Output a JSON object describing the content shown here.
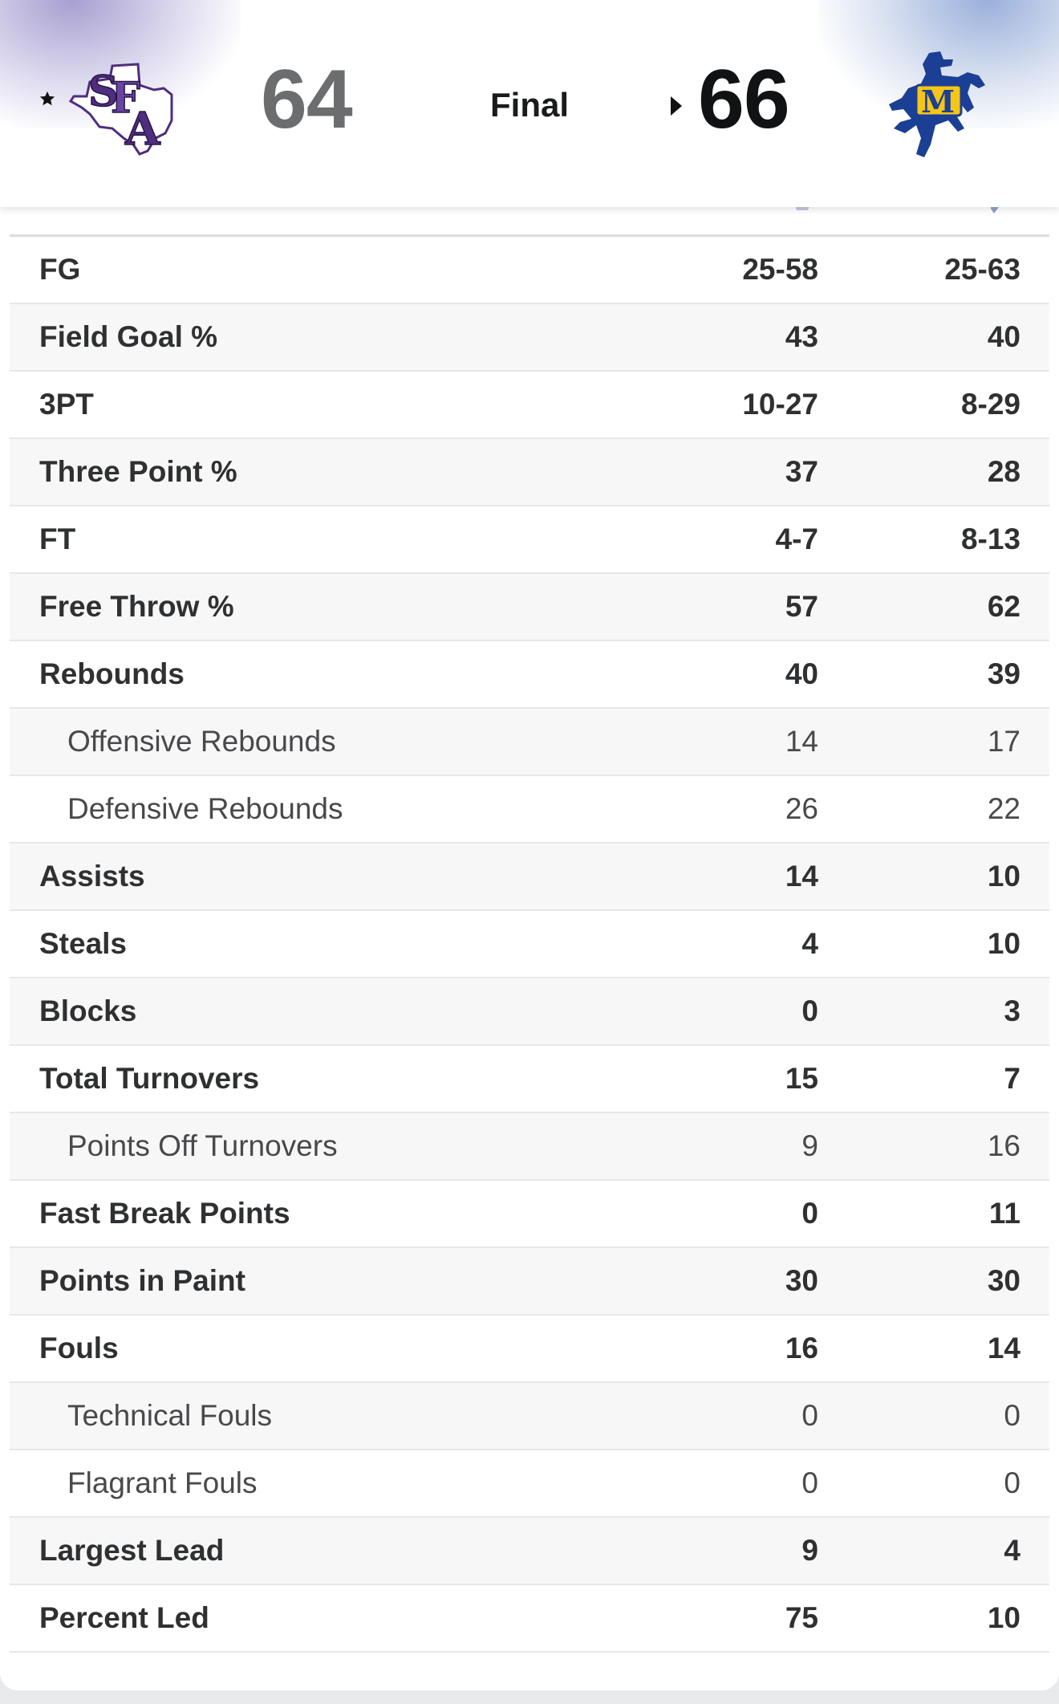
{
  "header": {
    "away": {
      "rank_icon": "star-icon",
      "logo": "sfa-logo",
      "score": "64"
    },
    "status": "Final",
    "home": {
      "logo": "mcneese-cowboy-logo",
      "score": "66",
      "winner_indicator": "caret-right-icon"
    }
  },
  "colors": {
    "away": "#4f2d7f",
    "home": "#1b3f94",
    "home_accent": "#f5c518"
  },
  "stats": [
    {
      "label": "FG",
      "away": "25-58",
      "home": "25-63",
      "sub": false
    },
    {
      "label": "Field Goal %",
      "away": "43",
      "home": "40",
      "sub": false
    },
    {
      "label": "3PT",
      "away": "10-27",
      "home": "8-29",
      "sub": false
    },
    {
      "label": "Three Point %",
      "away": "37",
      "home": "28",
      "sub": false
    },
    {
      "label": "FT",
      "away": "4-7",
      "home": "8-13",
      "sub": false
    },
    {
      "label": "Free Throw %",
      "away": "57",
      "home": "62",
      "sub": false
    },
    {
      "label": "Rebounds",
      "away": "40",
      "home": "39",
      "sub": false
    },
    {
      "label": "Offensive Rebounds",
      "away": "14",
      "home": "17",
      "sub": true
    },
    {
      "label": "Defensive Rebounds",
      "away": "26",
      "home": "22",
      "sub": true
    },
    {
      "label": "Assists",
      "away": "14",
      "home": "10",
      "sub": false
    },
    {
      "label": "Steals",
      "away": "4",
      "home": "10",
      "sub": false
    },
    {
      "label": "Blocks",
      "away": "0",
      "home": "3",
      "sub": false
    },
    {
      "label": "Total Turnovers",
      "away": "15",
      "home": "7",
      "sub": false
    },
    {
      "label": "Points Off Turnovers",
      "away": "9",
      "home": "16",
      "sub": true
    },
    {
      "label": "Fast Break Points",
      "away": "0",
      "home": "11",
      "sub": false
    },
    {
      "label": "Points in Paint",
      "away": "30",
      "home": "30",
      "sub": false
    },
    {
      "label": "Fouls",
      "away": "16",
      "home": "14",
      "sub": false
    },
    {
      "label": "Technical Fouls",
      "away": "0",
      "home": "0",
      "sub": true
    },
    {
      "label": "Flagrant Fouls",
      "away": "0",
      "home": "0",
      "sub": true
    },
    {
      "label": "Largest Lead",
      "away": "9",
      "home": "4",
      "sub": false
    },
    {
      "label": "Percent Led",
      "away": "75",
      "home": "10",
      "sub": false
    }
  ]
}
